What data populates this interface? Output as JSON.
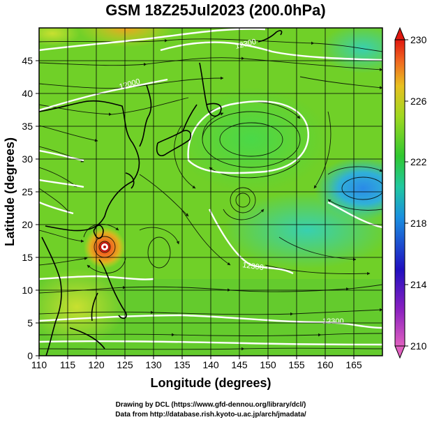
{
  "title": "GSM 18Z25Jul2023 (200.0hPa)",
  "x_axis": {
    "label": "Longitude (degrees)",
    "range": [
      110,
      170
    ],
    "ticks": [
      "110",
      "115",
      "120",
      "125",
      "130",
      "135",
      "140",
      "145",
      "150",
      "155",
      "160",
      "165"
    ]
  },
  "y_axis": {
    "label": "Latitude  (degrees)",
    "range": [
      0,
      50
    ],
    "ticks": [
      "0",
      "5",
      "10",
      "15",
      "20",
      "25",
      "30",
      "35",
      "40",
      "45"
    ]
  },
  "colorbar": {
    "ticks": [
      "210",
      "214",
      "218",
      "222",
      "226",
      "230"
    ],
    "range": [
      210,
      230
    ],
    "colors": [
      "#e060c0",
      "#3010c0",
      "#1aa8e0",
      "#2ec840",
      "#c8e020",
      "#f07820",
      "#e82010"
    ]
  },
  "contour_labels": [
    "12300",
    "12000",
    "12300",
    "12300"
  ],
  "features": {
    "typhoon_center": {
      "lon": 121.3,
      "lat": 18.6
    },
    "anticyclone_center": {
      "lon": 145,
      "lat": 35
    },
    "cold_low_center": {
      "lon": 165,
      "lat": 27
    }
  },
  "credits": {
    "line1": "Drawing by DCL (https://www.gfd-dennou.org/library/dcl/)",
    "line2": "Data from http://database.rish.kyoto-u.ac.jp/arch/jmadata/"
  },
  "colors": {
    "frame": "#000000",
    "contour": "#ffffff",
    "coast": "#000000"
  }
}
